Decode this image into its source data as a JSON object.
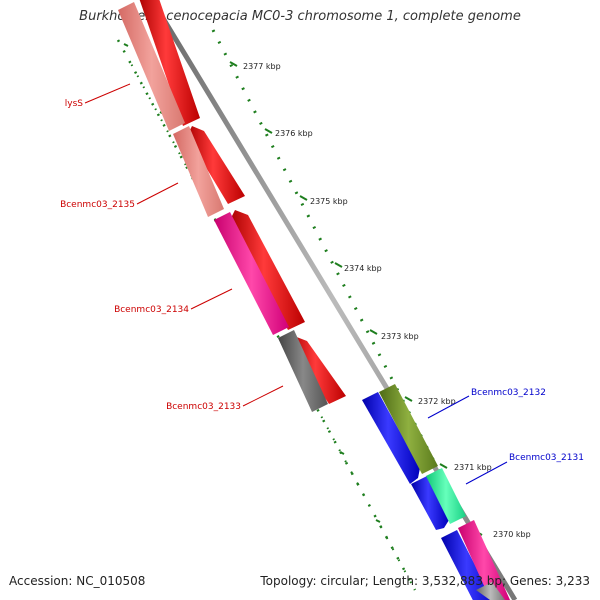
{
  "map": {
    "title": "Burkholderia cenocepacia MC0-3 chromosome 1, complete genome",
    "accession_text": "Accession: NC_010508",
    "stats_text": "Topology: circular; Length: 3,532,883 bp; Genes: 3,233"
  },
  "scale_ticks": [
    {
      "label": "2377 kbp"
    },
    {
      "label": "2376 kbp"
    },
    {
      "label": "2375 kbp"
    },
    {
      "label": "2374 kbp"
    },
    {
      "label": "2373 kbp"
    },
    {
      "label": "2372 kbp"
    },
    {
      "label": "2371 kbp"
    },
    {
      "label": "2370 kbp"
    }
  ],
  "gene_labels": [
    {
      "name": "lysS",
      "color": "#cc0000"
    },
    {
      "name": "Bcenmc03_2135",
      "color": "#cc0000"
    },
    {
      "name": "Bcenmc03_2134",
      "color": "#cc0000"
    },
    {
      "name": "Bcenmc03_2133",
      "color": "#cc0000"
    },
    {
      "name": "Bcenmc03_2132",
      "color": "#0000cc"
    },
    {
      "name": "Bcenmc03_2131",
      "color": "#0000cc"
    }
  ],
  "colors": {
    "forward_strand_gene": "#ff0000",
    "reverse_strand_gene": "#0000ff",
    "backbone": "#8c8c8c",
    "dotted_ring": "#1e7e1e",
    "cog_salmon": "#ec8a84",
    "cog_pink": "#ff1493",
    "cog_gray": "#666666",
    "cog_olive": "#6b8e23",
    "cog_mint": "#22ee99",
    "cog_magenta": "#ff22aa"
  }
}
